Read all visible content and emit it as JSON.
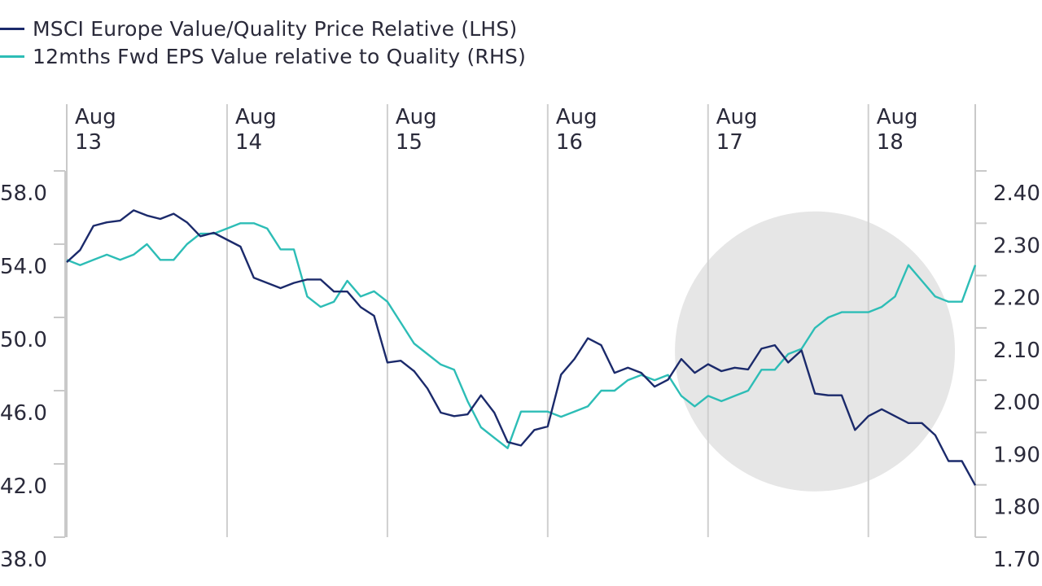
{
  "chart_data": {
    "type": "line",
    "title": "",
    "legend_position": "top-left",
    "grid": true,
    "x_axis": {
      "type": "date",
      "range": [
        "2013-08",
        "2018-12"
      ],
      "ticks": [
        {
          "value": "2013-08",
          "month": "Aug",
          "year": "13"
        },
        {
          "value": "2014-08",
          "month": "Aug",
          "year": "14"
        },
        {
          "value": "2015-08",
          "month": "Aug",
          "year": "15"
        },
        {
          "value": "2016-08",
          "month": "Aug",
          "year": "16"
        },
        {
          "value": "2017-08",
          "month": "Aug",
          "year": "17"
        },
        {
          "value": "2018-08",
          "month": "Aug",
          "year": "18"
        }
      ]
    },
    "y_left": {
      "range": [
        38,
        58
      ],
      "ticks": [
        {
          "value": 58,
          "label": "58.0"
        },
        {
          "value": 54,
          "label": "54.0"
        },
        {
          "value": 50,
          "label": "50.0"
        },
        {
          "value": 46,
          "label": "46.0"
        },
        {
          "value": 42,
          "label": "42.0"
        },
        {
          "value": 38,
          "label": "38.0"
        }
      ]
    },
    "y_right": {
      "range": [
        1.7,
        2.4
      ],
      "ticks": [
        {
          "value": 2.4,
          "label": "2.40"
        },
        {
          "value": 2.3,
          "label": "2.30"
        },
        {
          "value": 2.2,
          "label": "2.20"
        },
        {
          "value": 2.1,
          "label": "2.10"
        },
        {
          "value": 2.0,
          "label": "2.00"
        },
        {
          "value": 1.9,
          "label": "1.90"
        },
        {
          "value": 1.8,
          "label": "1.80"
        },
        {
          "value": 1.7,
          "label": "1.70"
        }
      ]
    },
    "highlight": {
      "shape": "circle",
      "center": {
        "x": "2018-04",
        "y": 2.055
      },
      "color": "#e6e6e6"
    },
    "series": [
      {
        "name": "MSCI Europe Value/Quality Price Relative (LHS)",
        "axis": "left",
        "color": "#1b2a6b",
        "points": [
          [
            "2013-08",
            53.9
          ],
          [
            "2013-09",
            54.6
          ],
          [
            "2013-10",
            56.0
          ],
          [
            "2013-11",
            56.2
          ],
          [
            "2013-12",
            56.3
          ],
          [
            "2014-01",
            56.9
          ],
          [
            "2014-02",
            56.6
          ],
          [
            "2014-03",
            56.4
          ],
          [
            "2014-04",
            56.7
          ],
          [
            "2014-05",
            56.2
          ],
          [
            "2014-06",
            55.4
          ],
          [
            "2014-07",
            55.6
          ],
          [
            "2014-08",
            55.2
          ],
          [
            "2014-09",
            54.8
          ],
          [
            "2014-10",
            53.0
          ],
          [
            "2014-11",
            52.7
          ],
          [
            "2014-12",
            52.4
          ],
          [
            "2015-01",
            52.7
          ],
          [
            "2015-02",
            52.9
          ],
          [
            "2015-03",
            52.9
          ],
          [
            "2015-04",
            52.2
          ],
          [
            "2015-05",
            52.2
          ],
          [
            "2015-06",
            51.3
          ],
          [
            "2015-07",
            50.8
          ],
          [
            "2015-08",
            48.1
          ],
          [
            "2015-09",
            48.2
          ],
          [
            "2015-10",
            47.6
          ],
          [
            "2015-11",
            46.6
          ],
          [
            "2015-12",
            45.2
          ],
          [
            "2016-01",
            45.0
          ],
          [
            "2016-02",
            45.1
          ],
          [
            "2016-03",
            46.2
          ],
          [
            "2016-04",
            45.2
          ],
          [
            "2016-05",
            43.5
          ],
          [
            "2016-06",
            43.3
          ],
          [
            "2016-07",
            44.2
          ],
          [
            "2016-08",
            44.4
          ],
          [
            "2016-09",
            47.4
          ],
          [
            "2016-10",
            48.3
          ],
          [
            "2016-11",
            49.5
          ],
          [
            "2016-12",
            49.1
          ],
          [
            "2017-01",
            47.5
          ],
          [
            "2017-02",
            47.8
          ],
          [
            "2017-03",
            47.5
          ],
          [
            "2017-04",
            46.7
          ],
          [
            "2017-05",
            47.1
          ],
          [
            "2017-06",
            48.3
          ],
          [
            "2017-07",
            47.5
          ],
          [
            "2017-08",
            48.0
          ],
          [
            "2017-09",
            47.6
          ],
          [
            "2017-10",
            47.8
          ],
          [
            "2017-11",
            47.7
          ],
          [
            "2017-12",
            48.9
          ],
          [
            "2018-01",
            49.1
          ],
          [
            "2018-02",
            48.1
          ],
          [
            "2018-03",
            48.8
          ],
          [
            "2018-04",
            46.3
          ],
          [
            "2018-05",
            46.2
          ],
          [
            "2018-06",
            46.2
          ],
          [
            "2018-07",
            44.2
          ],
          [
            "2018-08",
            45.0
          ],
          [
            "2018-09",
            45.4
          ],
          [
            "2018-10",
            45.0
          ],
          [
            "2018-11",
            44.6
          ],
          [
            "2018-12",
            44.6
          ],
          [
            "2019-01",
            43.9
          ],
          [
            "2019-02",
            42.4
          ],
          [
            "2019-03",
            42.4
          ],
          [
            "2019-04",
            41.0
          ]
        ]
      },
      {
        "name": "12mths Fwd EPS Value relative to Quality (RHS)",
        "axis": "right",
        "color": "#2dbdb6",
        "points": [
          [
            "2013-08",
            2.23
          ],
          [
            "2013-09",
            2.22
          ],
          [
            "2013-10",
            2.23
          ],
          [
            "2013-11",
            2.24
          ],
          [
            "2013-12",
            2.23
          ],
          [
            "2014-01",
            2.24
          ],
          [
            "2014-02",
            2.26
          ],
          [
            "2014-03",
            2.23
          ],
          [
            "2014-04",
            2.23
          ],
          [
            "2014-05",
            2.26
          ],
          [
            "2014-06",
            2.28
          ],
          [
            "2014-07",
            2.28
          ],
          [
            "2014-08",
            2.29
          ],
          [
            "2014-09",
            2.3
          ],
          [
            "2014-10",
            2.3
          ],
          [
            "2014-11",
            2.29
          ],
          [
            "2014-12",
            2.25
          ],
          [
            "2015-01",
            2.25
          ],
          [
            "2015-02",
            2.16
          ],
          [
            "2015-03",
            2.14
          ],
          [
            "2015-04",
            2.15
          ],
          [
            "2015-05",
            2.19
          ],
          [
            "2015-06",
            2.16
          ],
          [
            "2015-07",
            2.17
          ],
          [
            "2015-08",
            2.15
          ],
          [
            "2015-09",
            2.11
          ],
          [
            "2015-10",
            2.07
          ],
          [
            "2015-11",
            2.05
          ],
          [
            "2015-12",
            2.03
          ],
          [
            "2016-01",
            2.02
          ],
          [
            "2016-02",
            1.96
          ],
          [
            "2016-03",
            1.91
          ],
          [
            "2016-04",
            1.89
          ],
          [
            "2016-05",
            1.87
          ],
          [
            "2016-06",
            1.94
          ],
          [
            "2016-07",
            1.94
          ],
          [
            "2016-08",
            1.94
          ],
          [
            "2016-09",
            1.93
          ],
          [
            "2016-10",
            1.94
          ],
          [
            "2016-11",
            1.95
          ],
          [
            "2016-12",
            1.98
          ],
          [
            "2017-01",
            1.98
          ],
          [
            "2017-02",
            2.0
          ],
          [
            "2017-03",
            2.01
          ],
          [
            "2017-04",
            2.0
          ],
          [
            "2017-05",
            2.01
          ],
          [
            "2017-06",
            1.97
          ],
          [
            "2017-07",
            1.95
          ],
          [
            "2017-08",
            1.97
          ],
          [
            "2017-09",
            1.96
          ],
          [
            "2017-10",
            1.97
          ],
          [
            "2017-11",
            1.98
          ],
          [
            "2017-12",
            2.02
          ],
          [
            "2018-01",
            2.02
          ],
          [
            "2018-02",
            2.05
          ],
          [
            "2018-03",
            2.06
          ],
          [
            "2018-04",
            2.1
          ],
          [
            "2018-05",
            2.12
          ],
          [
            "2018-06",
            2.13
          ],
          [
            "2018-07",
            2.13
          ],
          [
            "2018-08",
            2.13
          ],
          [
            "2018-09",
            2.14
          ],
          [
            "2018-10",
            2.16
          ],
          [
            "2018-11",
            2.22
          ],
          [
            "2018-12",
            2.19
          ],
          [
            "2019-01",
            2.16
          ],
          [
            "2019-02",
            2.15
          ],
          [
            "2019-03",
            2.15
          ],
          [
            "2019-04",
            2.22
          ]
        ]
      }
    ]
  }
}
